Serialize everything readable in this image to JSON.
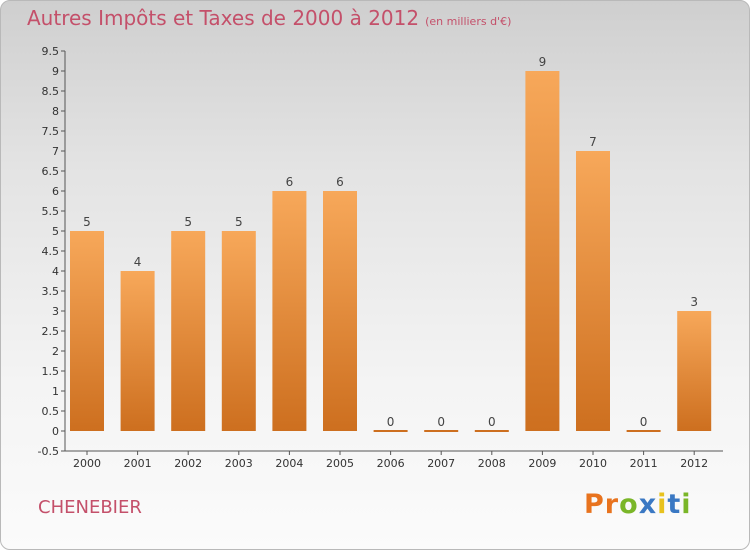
{
  "header": {
    "title": "Autres Impôts et Taxes de 2000 à 2012",
    "subtitle": "(en milliers d'€)"
  },
  "footer": {
    "commune": "CHENEBIER",
    "logo_text": "Proxiti"
  },
  "colors": {
    "title": "#c4506a",
    "bar_top": "#f7a85a",
    "bar_bottom": "#cd6f1f",
    "logo_letters": [
      "#e8731e",
      "#e8731e",
      "#7ab628",
      "#3a78c3",
      "#e8c21e",
      "#3a78c3",
      "#7ab628"
    ]
  },
  "chart_data": {
    "type": "bar",
    "categories": [
      "2000",
      "2001",
      "2002",
      "2003",
      "2004",
      "2005",
      "2006",
      "2007",
      "2008",
      "2009",
      "2010",
      "2011",
      "2012"
    ],
    "values": [
      5,
      4,
      5,
      5,
      6,
      6,
      0,
      0,
      0,
      9,
      7,
      0,
      3
    ],
    "data_labels": [
      "5",
      "4",
      "5",
      "5",
      "6",
      "6",
      "0",
      "0",
      "0",
      "9",
      "7",
      "0",
      "3"
    ],
    "yticks": [
      "-0.5",
      "0",
      "0.5",
      "1",
      "1.5",
      "2",
      "2.5",
      "3",
      "3.5",
      "4",
      "4.5",
      "5",
      "5.5",
      "6",
      "6.5",
      "7",
      "7.5",
      "8",
      "8.5",
      "9",
      "9.5"
    ],
    "ylim": [
      -0.5,
      9.5
    ],
    "grid": false,
    "legend": "none"
  }
}
